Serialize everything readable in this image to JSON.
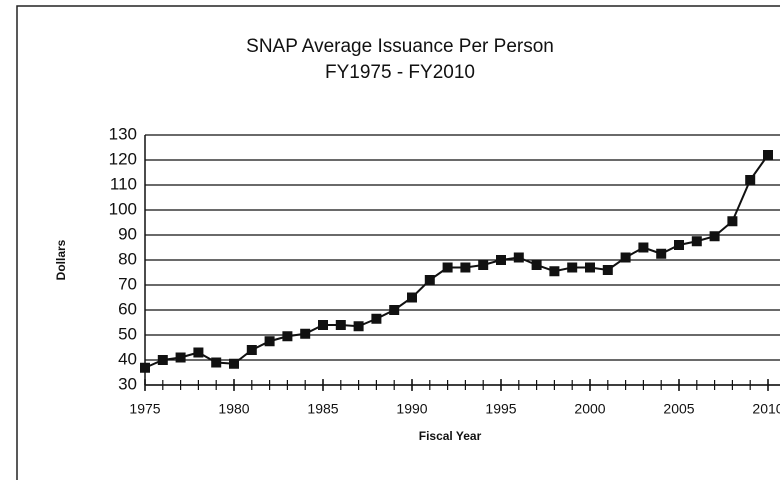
{
  "chart_data": {
    "type": "line",
    "title": "SNAP Average Issuance Per Person",
    "subtitle": "FY1975 - FY2010",
    "x_label": "Fiscal Year",
    "y_label": "Dollars",
    "x": [
      1975,
      1976,
      1977,
      1978,
      1979,
      1980,
      1981,
      1982,
      1983,
      1984,
      1985,
      1986,
      1987,
      1988,
      1989,
      1990,
      1991,
      1992,
      1993,
      1994,
      1995,
      1996,
      1997,
      1998,
      1999,
      2000,
      2001,
      2002,
      2003,
      2004,
      2005,
      2006,
      2007,
      2008,
      2009,
      2010
    ],
    "series": [
      {
        "name": "Average Issuance Per Person",
        "color": "#111111",
        "values": [
          36.9,
          40,
          41,
          43,
          39,
          38.5,
          44,
          47.5,
          49.5,
          50.5,
          54,
          54,
          53.5,
          56.5,
          60,
          65,
          72,
          77,
          77,
          78,
          80,
          81,
          78,
          75.5,
          77,
          77,
          76,
          81,
          85,
          82.5,
          86,
          87.5,
          89.5,
          95.5,
          112,
          122
        ]
      }
    ],
    "xlim": [
      1975,
      2010
    ],
    "xticks": [
      1975,
      1980,
      1985,
      1990,
      1995,
      2000,
      2005,
      2010
    ],
    "ylim": [
      30,
      130
    ],
    "yticks": [
      30,
      40,
      50,
      60,
      70,
      80,
      90,
      100,
      110,
      120,
      130
    ],
    "grid": true
  }
}
